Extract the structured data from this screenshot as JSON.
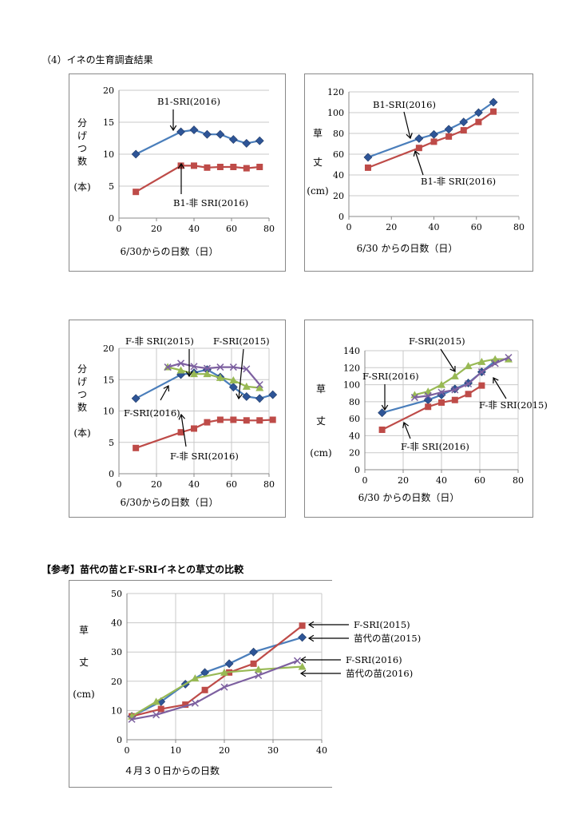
{
  "section_title": "（4）イネの生育調査結果",
  "reference_title": "【参考】苗代の苗とF-SRIイネとの草丈の比較",
  "colors": {
    "blue": "#4A7EBB",
    "red": "#BE4B48",
    "green": "#98B954",
    "purple": "#7D60A0",
    "marker_blue": "#1F497D"
  },
  "charts": [
    {
      "type": "line",
      "ylabel": [
        "分",
        "げ",
        "つ",
        "数",
        "",
        "(本)"
      ],
      "xlabel": "6/30からの日数（日）",
      "xlim": [
        0,
        80
      ],
      "ylim": [
        0,
        20
      ],
      "xticks": [
        "0",
        "20",
        "40",
        "60",
        "80"
      ],
      "yticks": [
        "0",
        "5",
        "10",
        "15",
        "20"
      ],
      "series": [
        {
          "name": "B1-SRI(2016)",
          "color": "blue",
          "marker": "diamond",
          "x": [
            9,
            33,
            40,
            47,
            54,
            61,
            68,
            75
          ],
          "y": [
            10,
            13.5,
            13.8,
            13.1,
            13.1,
            12.3,
            11.7,
            12.1
          ]
        },
        {
          "name": "B1-非 SRI(2016)",
          "color": "red",
          "marker": "square",
          "x": [
            9,
            33,
            40,
            47,
            54,
            61,
            68,
            75
          ],
          "y": [
            4.1,
            8.2,
            8.2,
            7.9,
            8.0,
            8.0,
            7.8,
            8.0
          ]
        }
      ],
      "annotations": [
        {
          "text": "B1-SRI(2016)",
          "series": 0
        },
        {
          "text": "B1-非 SRI(2016)",
          "series": 1
        }
      ]
    },
    {
      "type": "line",
      "ylabel": [
        "草",
        "",
        "丈",
        "",
        "(cm)"
      ],
      "xlabel": "6/30 からの日数（日）",
      "xlim": [
        0,
        80
      ],
      "ylim": [
        0,
        120
      ],
      "xticks": [
        "0",
        "20",
        "40",
        "60",
        "80"
      ],
      "yticks": [
        "0",
        "20",
        "40",
        "60",
        "80",
        "100",
        "120"
      ],
      "series": [
        {
          "name": "B1-SRI(2016)",
          "color": "blue",
          "marker": "diamond",
          "x": [
            9,
            33,
            40,
            47,
            54,
            61,
            68
          ],
          "y": [
            57,
            75,
            79,
            84,
            91,
            100,
            110
          ]
        },
        {
          "name": "B1-非 SRI(2016)",
          "color": "red",
          "marker": "square",
          "x": [
            9,
            33,
            40,
            47,
            54,
            61,
            68
          ],
          "y": [
            47,
            66,
            72,
            77,
            83,
            91,
            101
          ]
        }
      ],
      "annotations": [
        {
          "text": "B1-SRI(2016)",
          "series": 0
        },
        {
          "text": "B1-非 SRI(2016)",
          "series": 1
        }
      ]
    },
    {
      "type": "line",
      "ylabel": [
        "分",
        "げ",
        "つ",
        "数",
        "",
        "(本)"
      ],
      "xlabel": "6/30からの日数（日）",
      "xlim": [
        0,
        80
      ],
      "ylim": [
        0,
        20
      ],
      "xticks": [
        "0",
        "20",
        "40",
        "60",
        "80"
      ],
      "yticks": [
        "0",
        "5",
        "10",
        "15",
        "20"
      ],
      "series": [
        {
          "name": "F-SRI(2016)",
          "color": "blue",
          "marker": "diamond",
          "x": [
            9,
            33,
            40,
            47,
            54,
            61,
            68,
            75,
            82
          ],
          "y": [
            12,
            15.8,
            16.1,
            16.6,
            15.4,
            13.8,
            12.3,
            12.0,
            12.6
          ]
        },
        {
          "name": "F-非 SRI(2016)",
          "color": "red",
          "marker": "square",
          "x": [
            9,
            33,
            40,
            47,
            54,
            61,
            68,
            75,
            82
          ],
          "y": [
            4.1,
            6.6,
            7.2,
            8.2,
            8.6,
            8.6,
            8.5,
            8.5,
            8.6
          ]
        },
        {
          "name": "F-SRI(2015)",
          "color": "green",
          "marker": "triangle",
          "x": [
            26,
            33,
            40,
            47,
            54,
            61,
            68,
            75
          ],
          "y": [
            17,
            16.5,
            15.9,
            15.9,
            15.3,
            14.9,
            13.9,
            13.7
          ]
        },
        {
          "name": "F-非 SRI(2015)",
          "color": "purple",
          "marker": "x",
          "x": [
            26,
            33,
            40,
            47,
            54,
            61,
            68,
            75
          ],
          "y": [
            17,
            17.6,
            17.1,
            16.8,
            17.0,
            17.0,
            16.7,
            14.2
          ]
        }
      ],
      "annotations": [
        {
          "text": "F-非 SRI(2015)",
          "series": 3
        },
        {
          "text": "F-SRI(2015)",
          "series": 2
        },
        {
          "text": "F-SRI(2016)",
          "series": 0
        },
        {
          "text": "F-非 SRI(2016)",
          "series": 1
        }
      ]
    },
    {
      "type": "line",
      "ylabel": [
        "草",
        "",
        "丈",
        "",
        "(cm)"
      ],
      "xlabel": "6/30 からの日数（日）",
      "xlim": [
        0,
        80
      ],
      "ylim": [
        0,
        140
      ],
      "xticks": [
        "0",
        "20",
        "40",
        "60",
        "80"
      ],
      "yticks": [
        "0",
        "20",
        "40",
        "60",
        "80",
        "100",
        "120",
        "140"
      ],
      "series": [
        {
          "name": "F-SRI(2016)",
          "color": "blue",
          "marker": "diamond",
          "x": [
            9,
            33,
            40,
            47,
            54,
            61,
            68
          ],
          "y": [
            67,
            82,
            88,
            95,
            102,
            115,
            128
          ]
        },
        {
          "name": "F-非 SRI(2016)",
          "color": "red",
          "marker": "square",
          "x": [
            9,
            33,
            40,
            47,
            54,
            61
          ],
          "y": [
            47,
            74,
            79,
            82,
            89,
            99
          ]
        },
        {
          "name": "F-SRI(2015)",
          "color": "green",
          "marker": "triangle",
          "x": [
            26,
            33,
            40,
            47,
            54,
            61,
            68,
            75
          ],
          "y": [
            88,
            92,
            100,
            110,
            122,
            127,
            130,
            130
          ]
        },
        {
          "name": "F-非 SRI(2015)",
          "color": "purple",
          "marker": "x",
          "x": [
            26,
            33,
            40,
            47,
            54,
            61,
            68,
            75
          ],
          "y": [
            85,
            87,
            91,
            94,
            101,
            115,
            125,
            132
          ]
        }
      ],
      "annotations": [
        {
          "text": "F-SRI(2015)",
          "series": 2
        },
        {
          "text": "F-SRI(2016)",
          "series": 0
        },
        {
          "text": "F-非 SRI(2015)",
          "series": 3
        },
        {
          "text": "F-非 SRI(2016)",
          "series": 1
        }
      ]
    },
    {
      "type": "line",
      "ylabel": [
        "草",
        "",
        "丈",
        "",
        "(cm)"
      ],
      "xlabel": "４月３０日からの日数",
      "xlim": [
        0,
        40
      ],
      "ylim": [
        0,
        50
      ],
      "xticks": [
        "0",
        "10",
        "20",
        "30",
        "40"
      ],
      "yticks": [
        "0",
        "10",
        "20",
        "30",
        "40",
        "50"
      ],
      "series": [
        {
          "name": "苗代の苗(2015)",
          "color": "blue",
          "marker": "diamond",
          "x": [
            1,
            7,
            12,
            16,
            21,
            26,
            36
          ],
          "y": [
            8,
            13,
            19,
            23,
            26,
            30,
            35
          ]
        },
        {
          "name": "F-SRI(2015)",
          "color": "red",
          "marker": "square",
          "x": [
            1,
            7,
            12,
            16,
            21,
            26,
            36
          ],
          "y": [
            8,
            10.5,
            12,
            17,
            23,
            26,
            39
          ]
        },
        {
          "name": "苗代の苗(2016)",
          "color": "green",
          "marker": "triangle",
          "x": [
            1,
            6,
            14,
            20,
            27,
            36
          ],
          "y": [
            8,
            13,
            21,
            23,
            24,
            25
          ]
        },
        {
          "name": "F-SRI(2016)",
          "color": "purple",
          "marker": "x",
          "x": [
            1,
            6,
            14,
            20,
            27,
            35
          ],
          "y": [
            7,
            8.5,
            12.5,
            18,
            22,
            27
          ]
        }
      ],
      "annotations": [
        {
          "text": "F-SRI(2015)",
          "series": 1
        },
        {
          "text": "苗代の苗(2015)",
          "series": 0
        },
        {
          "text": "F-SRI(2016)",
          "series": 3
        },
        {
          "text": "苗代の苗(2016)",
          "series": 2
        }
      ]
    }
  ],
  "chart_data": [
    {
      "type": "line",
      "ylabel": "分げつ数 (本)",
      "xlabel": "6/30からの日数（日）",
      "xlim": [
        0,
        80
      ],
      "ylim": [
        0,
        20
      ],
      "series": [
        {
          "name": "B1-SRI(2016)",
          "x": [
            9,
            33,
            40,
            47,
            54,
            61,
            68,
            75
          ],
          "y": [
            10,
            13.5,
            13.8,
            13.1,
            13.1,
            12.3,
            11.7,
            12.1
          ]
        },
        {
          "name": "B1-非 SRI(2016)",
          "x": [
            9,
            33,
            40,
            47,
            54,
            61,
            68,
            75
          ],
          "y": [
            4.1,
            8.2,
            8.2,
            7.9,
            8.0,
            8.0,
            7.8,
            8.0
          ]
        }
      ]
    },
    {
      "type": "line",
      "ylabel": "草丈 (cm)",
      "xlabel": "6/30 からの日数（日）",
      "xlim": [
        0,
        80
      ],
      "ylim": [
        0,
        120
      ],
      "series": [
        {
          "name": "B1-SRI(2016)",
          "x": [
            9,
            33,
            40,
            47,
            54,
            61,
            68
          ],
          "y": [
            57,
            75,
            79,
            84,
            91,
            100,
            110
          ]
        },
        {
          "name": "B1-非 SRI(2016)",
          "x": [
            9,
            33,
            40,
            47,
            54,
            61,
            68
          ],
          "y": [
            47,
            66,
            72,
            77,
            83,
            91,
            101
          ]
        }
      ]
    },
    {
      "type": "line",
      "ylabel": "分げつ数 (本)",
      "xlabel": "6/30からの日数（日）",
      "xlim": [
        0,
        80
      ],
      "ylim": [
        0,
        20
      ],
      "series": [
        {
          "name": "F-SRI(2016)",
          "x": [
            9,
            33,
            40,
            47,
            54,
            61,
            68,
            75,
            82
          ],
          "y": [
            12,
            15.8,
            16.1,
            16.6,
            15.4,
            13.8,
            12.3,
            12.0,
            12.6
          ]
        },
        {
          "name": "F-非 SRI(2016)",
          "x": [
            9,
            33,
            40,
            47,
            54,
            61,
            68,
            75,
            82
          ],
          "y": [
            4.1,
            6.6,
            7.2,
            8.2,
            8.6,
            8.6,
            8.5,
            8.5,
            8.6
          ]
        },
        {
          "name": "F-SRI(2015)",
          "x": [
            26,
            33,
            40,
            47,
            54,
            61,
            68,
            75
          ],
          "y": [
            17,
            16.5,
            15.9,
            15.9,
            15.3,
            14.9,
            13.9,
            13.7
          ]
        },
        {
          "name": "F-非 SRI(2015)",
          "x": [
            26,
            33,
            40,
            47,
            54,
            61,
            68,
            75
          ],
          "y": [
            17,
            17.6,
            17.1,
            16.8,
            17.0,
            17.0,
            16.7,
            14.2
          ]
        }
      ]
    },
    {
      "type": "line",
      "ylabel": "草丈 (cm)",
      "xlabel": "6/30 からの日数（日）",
      "xlim": [
        0,
        80
      ],
      "ylim": [
        0,
        140
      ],
      "series": [
        {
          "name": "F-SRI(2016)",
          "x": [
            9,
            33,
            40,
            47,
            54,
            61,
            68
          ],
          "y": [
            67,
            82,
            88,
            95,
            102,
            115,
            128
          ]
        },
        {
          "name": "F-非 SRI(2016)",
          "x": [
            9,
            33,
            40,
            47,
            54,
            61
          ],
          "y": [
            47,
            74,
            79,
            82,
            89,
            99
          ]
        },
        {
          "name": "F-SRI(2015)",
          "x": [
            26,
            33,
            40,
            47,
            54,
            61,
            68,
            75
          ],
          "y": [
            88,
            92,
            100,
            110,
            122,
            127,
            130,
            130
          ]
        },
        {
          "name": "F-非 SRI(2015)",
          "x": [
            26,
            33,
            40,
            47,
            54,
            61,
            68,
            75
          ],
          "y": [
            85,
            87,
            91,
            94,
            101,
            115,
            125,
            132
          ]
        }
      ]
    },
    {
      "type": "line",
      "ylabel": "草丈 (cm)",
      "xlabel": "４月３０日からの日数",
      "xlim": [
        0,
        40
      ],
      "ylim": [
        0,
        50
      ],
      "series": [
        {
          "name": "苗代の苗(2015)",
          "x": [
            1,
            7,
            12,
            16,
            21,
            26,
            36
          ],
          "y": [
            8,
            13,
            19,
            23,
            26,
            30,
            35
          ]
        },
        {
          "name": "F-SRI(2015)",
          "x": [
            1,
            7,
            12,
            16,
            21,
            26,
            36
          ],
          "y": [
            8,
            10.5,
            12,
            17,
            23,
            26,
            39
          ]
        },
        {
          "name": "苗代の苗(2016)",
          "x": [
            1,
            6,
            14,
            20,
            27,
            36
          ],
          "y": [
            8,
            13,
            21,
            23,
            24,
            25
          ]
        },
        {
          "name": "F-SRI(2016)",
          "x": [
            1,
            6,
            14,
            20,
            27,
            35
          ],
          "y": [
            7,
            8.5,
            12.5,
            18,
            22,
            27
          ]
        }
      ]
    }
  ]
}
